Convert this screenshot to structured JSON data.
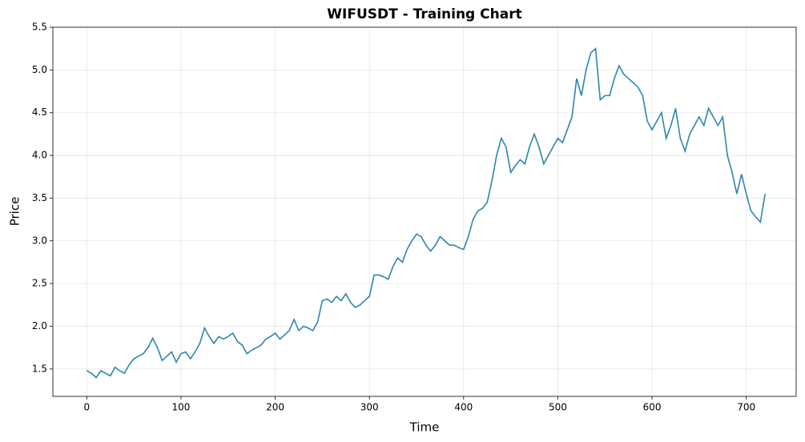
{
  "chart_data": {
    "type": "line",
    "title": "WIFUSDT - Training Chart",
    "x_label": "Time",
    "y_label": "Price",
    "x": [
      0,
      5,
      10,
      15,
      20,
      25,
      30,
      35,
      40,
      45,
      50,
      55,
      60,
      65,
      70,
      75,
      80,
      85,
      90,
      95,
      100,
      105,
      110,
      115,
      120,
      125,
      130,
      135,
      140,
      145,
      150,
      155,
      160,
      165,
      170,
      175,
      180,
      185,
      190,
      195,
      200,
      205,
      210,
      215,
      220,
      225,
      230,
      235,
      240,
      245,
      250,
      255,
      260,
      265,
      270,
      275,
      280,
      285,
      290,
      295,
      300,
      305,
      310,
      315,
      320,
      325,
      330,
      335,
      340,
      345,
      350,
      355,
      360,
      365,
      370,
      375,
      380,
      385,
      390,
      395,
      400,
      405,
      410,
      415,
      420,
      425,
      430,
      435,
      440,
      445,
      450,
      455,
      460,
      465,
      470,
      475,
      480,
      485,
      490,
      495,
      500,
      505,
      510,
      515,
      520,
      525,
      530,
      535,
      540,
      545,
      550,
      555,
      560,
      565,
      570,
      575,
      580,
      585,
      590,
      595,
      600,
      605,
      610,
      615,
      620,
      625,
      630,
      635,
      640,
      645,
      650,
      655,
      660,
      665,
      670,
      675,
      680,
      685,
      690,
      695,
      700,
      705,
      710,
      715,
      720
    ],
    "series": [
      {
        "name": "Price",
        "color": "#2e86ab",
        "values": [
          1.48,
          1.45,
          1.4,
          1.48,
          1.45,
          1.42,
          1.52,
          1.48,
          1.45,
          1.55,
          1.62,
          1.65,
          1.68,
          1.75,
          1.86,
          1.75,
          1.6,
          1.65,
          1.7,
          1.58,
          1.68,
          1.7,
          1.62,
          1.7,
          1.8,
          1.98,
          1.88,
          1.8,
          1.88,
          1.85,
          1.88,
          1.92,
          1.82,
          1.78,
          1.68,
          1.72,
          1.75,
          1.78,
          1.85,
          1.88,
          1.92,
          1.85,
          1.9,
          1.95,
          2.08,
          1.95,
          2.0,
          1.98,
          1.95,
          2.05,
          2.3,
          2.32,
          2.28,
          2.35,
          2.3,
          2.38,
          2.28,
          2.22,
          2.25,
          2.3,
          2.35,
          2.6,
          2.6,
          2.58,
          2.55,
          2.7,
          2.8,
          2.75,
          2.9,
          3.0,
          3.08,
          3.05,
          2.95,
          2.88,
          2.95,
          3.05,
          3.0,
          2.95,
          2.95,
          2.92,
          2.9,
          3.05,
          3.25,
          3.35,
          3.38,
          3.45,
          3.7,
          4.0,
          4.2,
          4.1,
          3.8,
          3.88,
          3.95,
          3.9,
          4.1,
          4.25,
          4.1,
          3.9,
          4.0,
          4.1,
          4.2,
          4.15,
          4.3,
          4.45,
          4.9,
          4.7,
          5.0,
          5.2,
          5.25,
          4.65,
          4.7,
          4.7,
          4.9,
          5.05,
          4.95,
          4.9,
          4.85,
          4.8,
          4.7,
          4.4,
          4.3,
          4.4,
          4.5,
          4.2,
          4.35,
          4.55,
          4.2,
          4.05,
          4.25,
          4.35,
          4.45,
          4.35,
          4.55,
          4.45,
          4.35,
          4.45,
          4.0,
          3.8,
          3.55,
          3.78,
          3.55,
          3.35,
          3.28,
          3.22,
          3.55
        ]
      }
    ],
    "xlim": [
      -36,
      753
    ],
    "ylim": [
      1.18,
      5.5
    ],
    "xticks": [
      0,
      100,
      200,
      300,
      400,
      500,
      600,
      700
    ],
    "yticks": [
      1.5,
      {
        "value": 2.0,
        "label": "2.0"
      },
      2.5,
      {
        "value": 3.0,
        "label": "3.0"
      },
      3.5,
      {
        "value": 4.0,
        "label": "4.0"
      },
      4.5,
      {
        "value": 5.0,
        "label": "5.0"
      },
      5.5
    ],
    "grid": true
  }
}
